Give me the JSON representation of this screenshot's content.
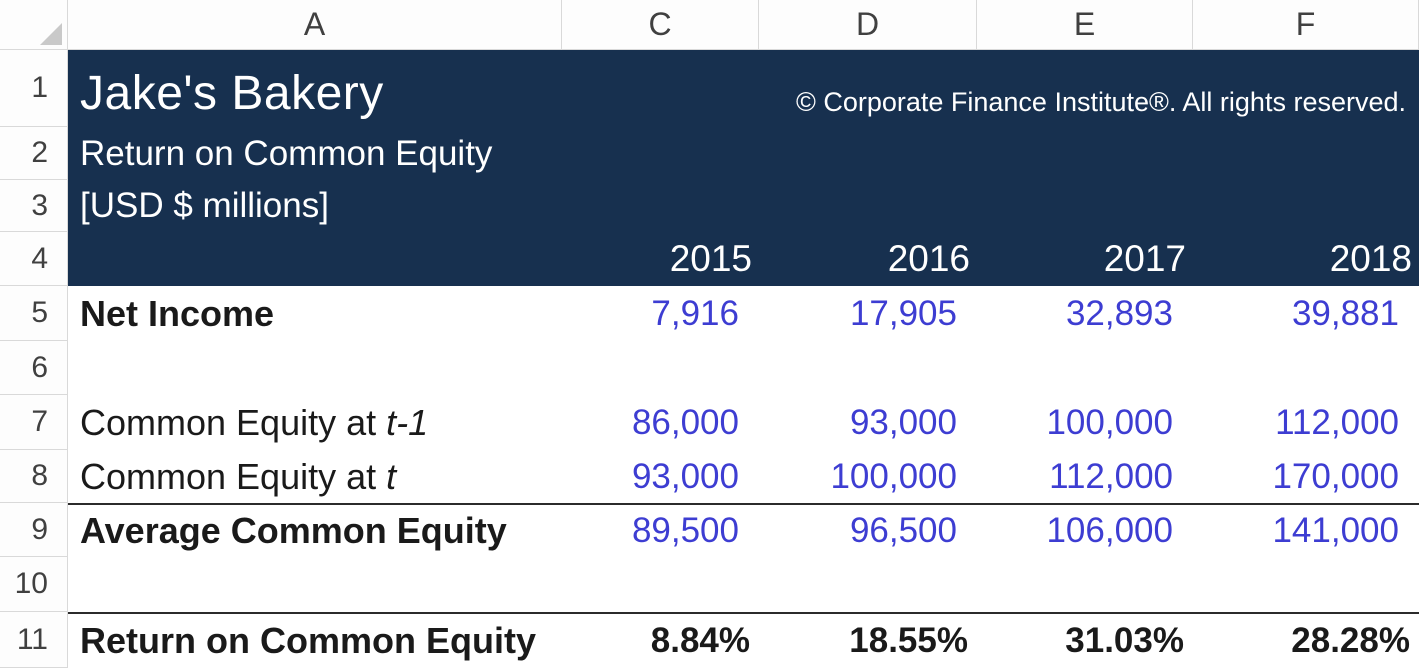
{
  "sheet": {
    "column_headers": [
      "A",
      "C",
      "D",
      "E",
      "F"
    ],
    "row_numbers": [
      "1",
      "2",
      "3",
      "4",
      "5",
      "6",
      "7",
      "8",
      "9",
      "10",
      "11"
    ]
  },
  "header": {
    "title": "Jake's Bakery",
    "copyright": "© Corporate Finance Institute®. All rights reserved.",
    "subtitle": "Return on Common Equity",
    "units": "[USD $ millions]",
    "years": [
      "2015",
      "2016",
      "2017",
      "2018"
    ]
  },
  "table": {
    "rows": [
      {
        "label": "Net Income",
        "values": [
          "7,916",
          "17,905",
          "32,893",
          "39,881"
        ]
      },
      {
        "label": "Common Equity at ",
        "label_italic": "t-1",
        "values": [
          "86,000",
          "93,000",
          "100,000",
          "112,000"
        ]
      },
      {
        "label": "Common Equity at ",
        "label_italic": "t",
        "values": [
          "93,000",
          "100,000",
          "112,000",
          "170,000"
        ]
      },
      {
        "label": "Average Common Equity",
        "values": [
          "89,500",
          "96,500",
          "106,000",
          "141,000"
        ]
      },
      {
        "label": "Return on Common Equity",
        "values": [
          "8.84%",
          "18.55%",
          "31.03%",
          "28.28%"
        ]
      }
    ]
  },
  "colors": {
    "header_navy": "#17304F",
    "input_value_blue": "#3D3DD2",
    "rule_dark": "#2B2B2B",
    "grid_gray": "#D9D9D9"
  }
}
